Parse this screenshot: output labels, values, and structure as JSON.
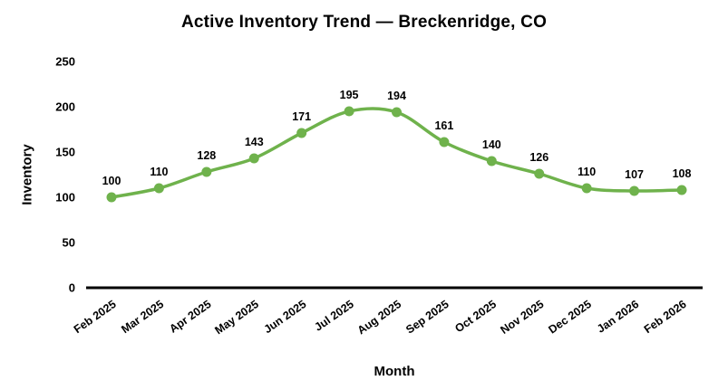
{
  "chart_data": {
    "type": "line",
    "title": "Active Inventory Trend — Breckenridge, CO",
    "xlabel": "Month",
    "ylabel": "Inventory",
    "categories": [
      "Feb 2025",
      "Mar 2025",
      "Apr 2025",
      "May 2025",
      "Jun 2025",
      "Jul 2025",
      "Aug 2025",
      "Sep 2025",
      "Oct 2025",
      "Nov 2025",
      "Dec 2025",
      "Jan 2026",
      "Feb 2026"
    ],
    "series": [
      {
        "name": "Inventory",
        "values": [
          100,
          110,
          128,
          143,
          171,
          195,
          194,
          161,
          140,
          126,
          110,
          107,
          108
        ]
      }
    ],
    "ylim": [
      0,
      250
    ],
    "yticks": [
      0,
      50,
      100,
      150,
      200,
      250
    ],
    "grid": false,
    "legend_position": "none",
    "data_labels": true,
    "colors": {
      "line": "#6fb24c",
      "marker": "#6fb24c",
      "axis": "#000000",
      "text": "#000000",
      "background": "#ffffff"
    }
  }
}
